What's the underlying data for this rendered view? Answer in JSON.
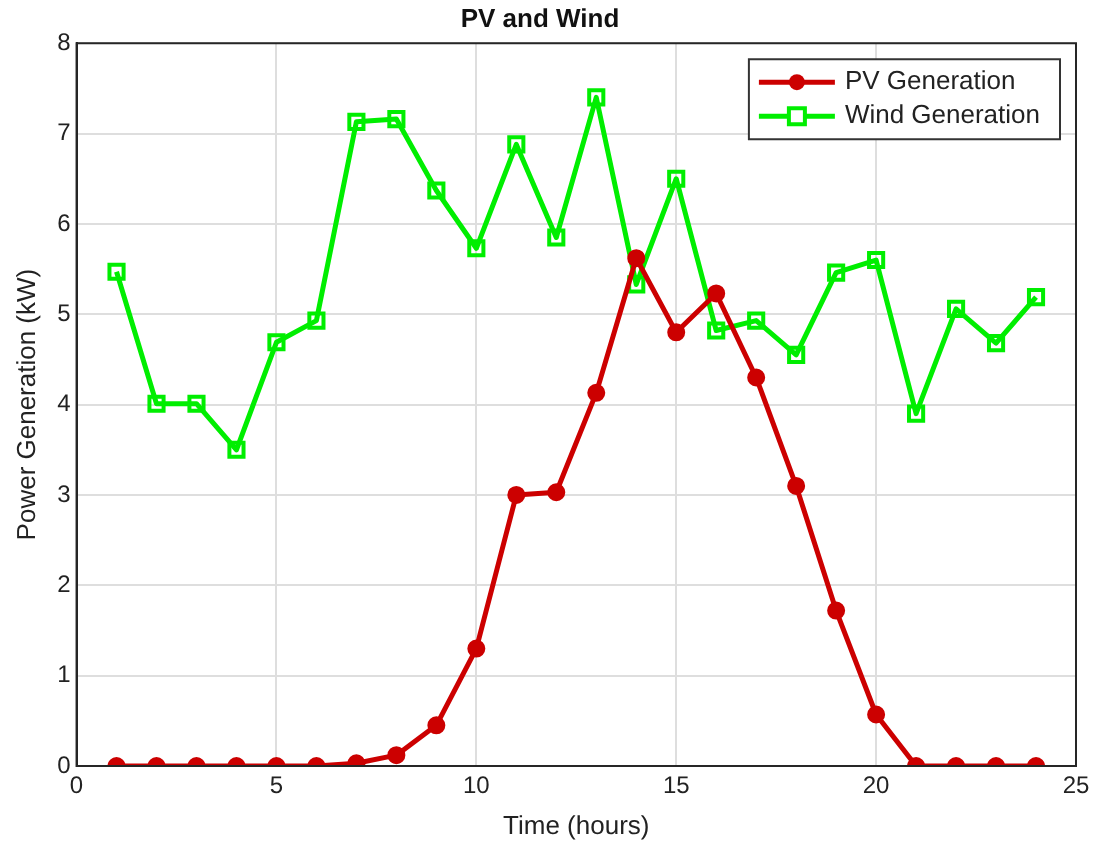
{
  "chart_data": {
    "type": "line",
    "title": "PV and Wind",
    "xlabel": "Time (hours)",
    "ylabel": "Power Generation (kW)",
    "x": [
      1,
      2,
      3,
      4,
      5,
      6,
      7,
      8,
      9,
      10,
      11,
      12,
      13,
      14,
      15,
      16,
      17,
      18,
      19,
      20,
      21,
      22,
      23,
      24
    ],
    "series": [
      {
        "name": "PV Generation",
        "color": "#cc0000",
        "marker": "circle",
        "values": [
          0,
          0,
          0,
          0,
          0,
          0,
          0.03,
          0.12,
          0.45,
          1.3,
          3.0,
          3.03,
          4.13,
          5.62,
          4.8,
          5.23,
          4.3,
          3.1,
          1.72,
          0.57,
          0,
          0,
          0,
          0
        ]
      },
      {
        "name": "Wind Generation",
        "color": "#00ee00",
        "marker": "square",
        "values": [
          5.47,
          4.01,
          4.01,
          3.5,
          4.69,
          4.93,
          7.13,
          7.16,
          6.37,
          5.73,
          6.88,
          5.85,
          7.4,
          5.33,
          6.5,
          4.82,
          4.93,
          4.55,
          5.46,
          5.6,
          3.9,
          5.06,
          4.68,
          5.19
        ]
      }
    ],
    "xlim": [
      0,
      25
    ],
    "xticks": [
      0,
      5,
      10,
      15,
      20,
      25
    ],
    "ylim": [
      0,
      8
    ],
    "yticks": [
      0,
      1,
      2,
      3,
      4,
      5,
      6,
      7,
      8
    ],
    "grid": true,
    "legend": "top right",
    "line_style": "solid"
  }
}
